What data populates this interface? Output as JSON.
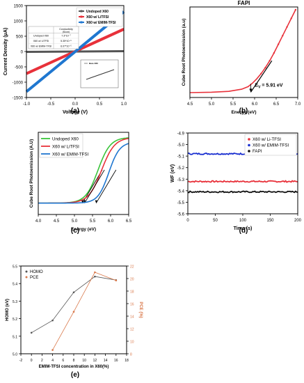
{
  "chart_data": [
    {
      "type": "line",
      "panel": "(a)",
      "xlabel": "Voltage (V)",
      "ylabel": "Current Density (μA)",
      "xlim": [
        -1.0,
        1.0
      ],
      "ylim": [
        -1500,
        1500
      ],
      "xticks": [
        "-1.0",
        "-0.5",
        "0.0",
        "0.5",
        "1.0"
      ],
      "yticks": [
        "-1500",
        "-1000",
        "-500",
        "0",
        "500",
        "1000",
        "1500"
      ],
      "legend_position": "top-right",
      "series": [
        {
          "name": "Undoped X60",
          "color": "#555555",
          "x": [
            -1.0,
            1.0
          ],
          "y": [
            -10,
            10
          ]
        },
        {
          "name": "X60 w/ LiTFSI",
          "color": "#e8313a",
          "x": [
            -1.0,
            1.0
          ],
          "y": [
            -720,
            730
          ]
        },
        {
          "name": "X60 w/ EMIM-TFSI",
          "color": "#1f77d0",
          "x": [
            -1.0,
            1.0
          ],
          "y": [
            -1310,
            1300
          ]
        }
      ],
      "table": {
        "header": "Conductivity (S/cm)",
        "rows": [
          {
            "label": "Undoped X60",
            "value": "7.3*10⁻⁷"
          },
          {
            "label": "X60 w/ LiTFSI",
            "value": "5.35*10⁻⁵"
          },
          {
            "label": "X60 w/ EMIM-TFSI",
            "value": "6.07*10⁻⁵"
          }
        ]
      },
      "inset": {
        "legend": "Bare X60",
        "color": "#333333",
        "x": [
          -1.0,
          1.0
        ],
        "y": [
          -1,
          1
        ]
      }
    },
    {
      "type": "scatter",
      "panel": "(b)",
      "title": "FAPI",
      "xlabel": "Energy (eV)",
      "ylabel": "Cube Root Photoemission (a.u)",
      "xlim": [
        4.5,
        7.0
      ],
      "ylim": [
        0,
        1
      ],
      "xticks": [
        "4.5",
        "5.0",
        "5.5",
        "6.0",
        "6.5",
        "7.0"
      ],
      "color": "#e8313a",
      "x": [
        4.5,
        5.0,
        5.4,
        5.7,
        5.85,
        5.95,
        6.05,
        6.15,
        6.25,
        6.35,
        6.45,
        6.55,
        6.65,
        6.75,
        6.85,
        6.95
      ],
      "y": [
        0.04,
        0.045,
        0.055,
        0.08,
        0.11,
        0.15,
        0.2,
        0.26,
        0.33,
        0.41,
        0.5,
        0.6,
        0.7,
        0.8,
        0.9,
        1.0
      ],
      "annotation": {
        "text": "E",
        "sub": "V",
        "rest": " = 5.91 eV",
        "x": 5.91
      },
      "tangent": {
        "x": [
          5.91,
          6.4
        ],
        "y": [
          0.045,
          0.41
        ]
      }
    },
    {
      "type": "line",
      "panel": "(c)",
      "xlabel": "Energy (eV)",
      "ylabel": "Cube Root Photoemission (A.U)",
      "xlim": [
        4.0,
        6.5
      ],
      "ylim": [
        0,
        1
      ],
      "xticks": [
        "4.0",
        "4.5",
        "5.0",
        "5.5",
        "6.0",
        "6.5"
      ],
      "legend_position": "top-left",
      "series": [
        {
          "name": "Undoped X60",
          "color": "#39c43a",
          "onset": 5.22,
          "mid": 5.65,
          "scale": 0.17
        },
        {
          "name": "X60 w/ LiTFSI",
          "color": "#e8313a",
          "onset": 5.28,
          "mid": 5.75,
          "scale": 0.18
        },
        {
          "name": "X60 w/ EMIM-TFSI",
          "color": "#1f77d0",
          "onset": 5.6,
          "mid": 5.95,
          "scale": 0.15
        }
      ]
    },
    {
      "type": "scatter",
      "panel": "(d)",
      "xlabel": "Time (s)",
      "ylabel": "WF (eV)",
      "xlim": [
        0,
        200
      ],
      "ylim": [
        -5.6,
        -4.9
      ],
      "xticks": [
        "0",
        "50",
        "100",
        "150",
        "200"
      ],
      "yticks": [
        "-4.9",
        "-5.0",
        "-5.1",
        "-5.2",
        "-5.3",
        "-5.4",
        "-5.5",
        "-5.6"
      ],
      "legend_position": "top-right",
      "series": [
        {
          "name": "X60 w/ Li-TFSI",
          "color": "#e8313a",
          "value": -5.32
        },
        {
          "name": "X60 w/ EMIM-TFSI",
          "color": "#1a2fd0",
          "value": -5.08
        },
        {
          "name": "FAPI",
          "color": "#111111",
          "value": -5.41
        }
      ]
    },
    {
      "type": "line",
      "panel": "(e)",
      "xlabel": "EMIM-TFSI concentration in X60(%)",
      "ylabel": "HOMO (eV)",
      "y2label": "PCE (%)",
      "xlim": [
        -2,
        18
      ],
      "ylim": [
        5.0,
        5.5
      ],
      "y2lim": [
        8,
        22
      ],
      "xticks": [
        "-2",
        "0",
        "2",
        "4",
        "6",
        "8",
        "10",
        "12",
        "14",
        "16",
        "18"
      ],
      "yticks": [
        "5.0",
        "5.1",
        "5.2",
        "5.3",
        "5.4",
        "5.5"
      ],
      "y2ticks": [
        "8",
        "10",
        "12",
        "14",
        "16",
        "18",
        "20",
        "22"
      ],
      "legend_position": "top-left",
      "series": [
        {
          "name": "HOMO",
          "color": "#555555",
          "axis": "left",
          "x": [
            0,
            4,
            8,
            12,
            16
          ],
          "y": [
            5.12,
            5.19,
            5.35,
            5.44,
            5.42
          ]
        },
        {
          "name": "PCE",
          "color": "#d9784a",
          "axis": "right",
          "x": [
            4,
            8,
            12,
            16
          ],
          "y": [
            8.6,
            14.7,
            21.0,
            19.7
          ]
        }
      ]
    }
  ]
}
